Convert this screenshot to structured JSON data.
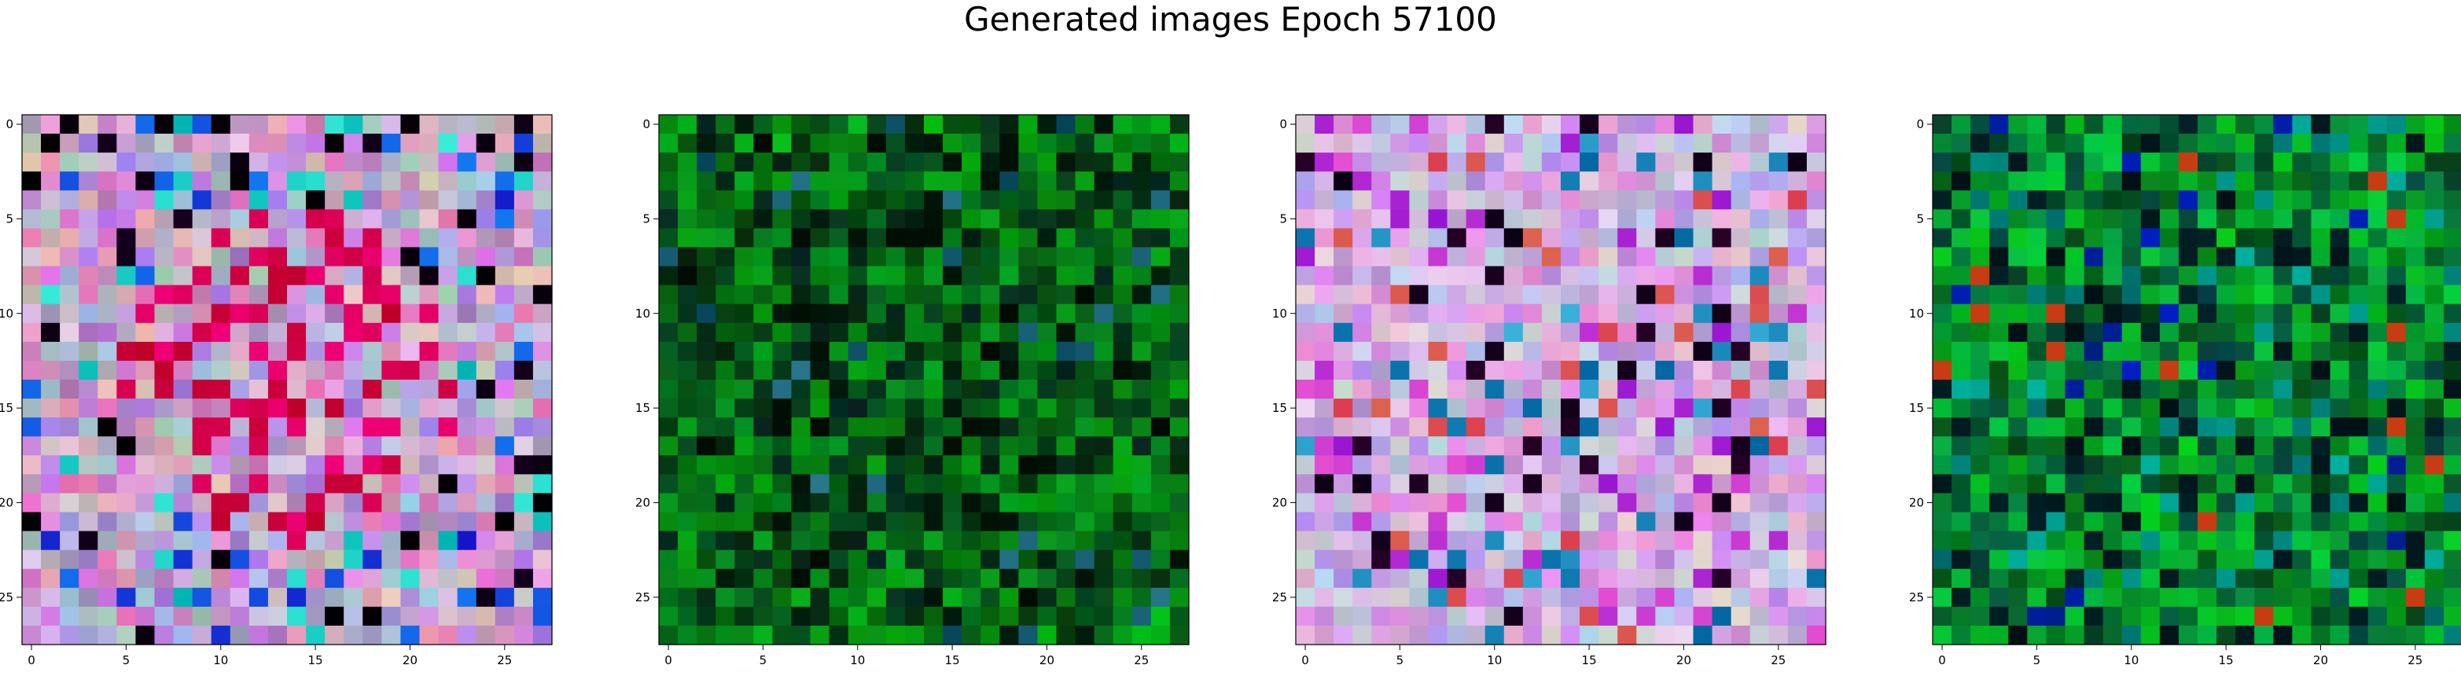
{
  "title": "Generated images Epoch 57100",
  "chart_data": [
    {
      "type": "heatmap",
      "grid_size": 28,
      "xticks": [
        0,
        5,
        10,
        15,
        20,
        25
      ],
      "yticks": [
        0,
        5,
        10,
        15,
        20,
        25
      ],
      "xlim": [
        -0.5,
        27.5
      ],
      "ylim": [
        27.5,
        -0.5
      ],
      "palette": "pink-magenta-red",
      "base": "#b896c8"
    },
    {
      "type": "heatmap",
      "grid_size": 28,
      "xticks": [
        0,
        5,
        10,
        15,
        20,
        25
      ],
      "yticks": [
        0,
        5,
        10,
        15,
        20,
        25
      ],
      "xlim": [
        -0.5,
        27.5
      ],
      "ylim": [
        27.5,
        -0.5
      ],
      "palette": "dark-green",
      "base": "#0a5a12"
    },
    {
      "type": "heatmap",
      "grid_size": 28,
      "xticks": [
        0,
        5,
        10,
        15,
        20,
        25
      ],
      "yticks": [
        0,
        5,
        10,
        15,
        20,
        25
      ],
      "xlim": [
        -0.5,
        27.5
      ],
      "ylim": [
        27.5,
        -0.5
      ],
      "palette": "lavender-pink",
      "base": "#c8a0d8"
    },
    {
      "type": "heatmap",
      "grid_size": 28,
      "xticks": [
        0,
        5,
        10,
        15,
        20,
        25
      ],
      "yticks": [
        0,
        5,
        10,
        15,
        20,
        25
      ],
      "xlim": [
        -0.5,
        27.5
      ],
      "ylim": [
        27.5,
        -0.5
      ],
      "palette": "green-teal",
      "base": "#0f6a28"
    }
  ]
}
